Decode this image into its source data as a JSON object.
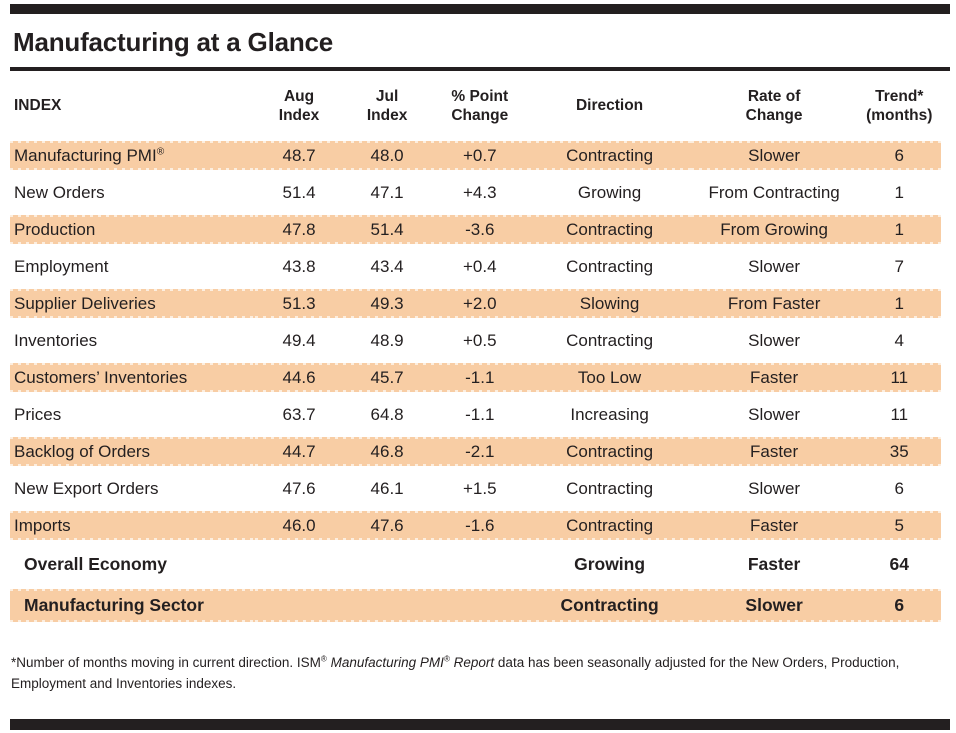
{
  "title": "Manufacturing at a Glance",
  "colors": {
    "row_highlight": "#F8CDA4",
    "rule_black": "#231F20"
  },
  "table": {
    "columns": [
      {
        "key": "index",
        "lines": [
          "INDEX"
        ]
      },
      {
        "key": "aug_index",
        "lines": [
          "Aug",
          "Index"
        ]
      },
      {
        "key": "jul_index",
        "lines": [
          "Jul",
          "Index"
        ]
      },
      {
        "key": "point_change",
        "lines": [
          "% Point",
          "Change"
        ]
      },
      {
        "key": "direction",
        "lines": [
          "Direction"
        ]
      },
      {
        "key": "rate_of_change",
        "lines": [
          "Rate of",
          "Change"
        ]
      },
      {
        "key": "trend_months",
        "lines": [
          "Trend*",
          "(months)"
        ]
      }
    ],
    "rows": [
      [
        "Manufacturing PMI®",
        "48.7",
        "48.0",
        "+0.7",
        "Contracting",
        "Slower",
        "6"
      ],
      [
        "New Orders",
        "51.4",
        "47.1",
        "+4.3",
        "Growing",
        "From Contracting",
        "1"
      ],
      [
        "Production",
        "47.8",
        "51.4",
        "-3.6",
        "Contracting",
        "From Growing",
        "1"
      ],
      [
        "Employment",
        "43.8",
        "43.4",
        "+0.4",
        "Contracting",
        "Slower",
        "7"
      ],
      [
        "Supplier Deliveries",
        "51.3",
        "49.3",
        "+2.0",
        "Slowing",
        "From Faster",
        "1"
      ],
      [
        "Inventories",
        "49.4",
        "48.9",
        "+0.5",
        "Contracting",
        "Slower",
        "4"
      ],
      [
        "Customers’ Inventories",
        "44.6",
        "45.7",
        "-1.1",
        "Too Low",
        "Faster",
        "11"
      ],
      [
        "Prices",
        "63.7",
        "64.8",
        "-1.1",
        "Increasing",
        "Slower",
        "11"
      ],
      [
        "Backlog of Orders",
        "44.7",
        "46.8",
        "-2.1",
        "Contracting",
        "Faster",
        "35"
      ],
      [
        "New Export Orders",
        "47.6",
        "46.1",
        "+1.5",
        "Contracting",
        "Slower",
        "6"
      ],
      [
        "Imports",
        "46.0",
        "47.6",
        "-1.6",
        "Contracting",
        "Faster",
        "5"
      ]
    ],
    "summary_rows": [
      [
        "Overall Economy",
        "",
        "",
        "",
        "Growing",
        "Faster",
        "64"
      ],
      [
        "Manufacturing Sector",
        "",
        "",
        "",
        "Contracting",
        "Slower",
        "6"
      ]
    ]
  },
  "footnote": {
    "parts": [
      {
        "text": "*Number of months moving in current direction. ISM® ",
        "italic": false
      },
      {
        "text": "Manufacturing PMI® Report",
        "italic": true
      },
      {
        "text": " data has been seasonally adjusted for the New Orders, Production, Employment and Inventories indexes.",
        "italic": false
      }
    ]
  }
}
